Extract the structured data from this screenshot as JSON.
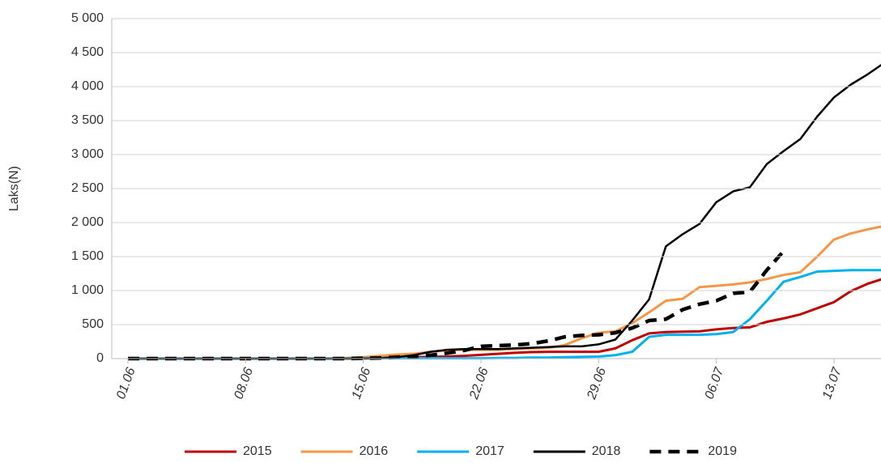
{
  "chart_data": {
    "type": "line",
    "y_label": "Laks(N)",
    "categories": [
      "01.06",
      null,
      null,
      null,
      null,
      null,
      null,
      "08.06",
      null,
      null,
      null,
      null,
      null,
      null,
      "15.06",
      null,
      null,
      null,
      null,
      null,
      null,
      "22.06",
      null,
      null,
      null,
      null,
      null,
      null,
      "29.06",
      null,
      null,
      null,
      null,
      null,
      null,
      "06.07",
      null,
      null,
      null,
      null,
      null,
      null,
      "13.07",
      null,
      null,
      null
    ],
    "ylim": [
      0,
      5000
    ],
    "yticks": [
      0,
      500,
      {
        "value": 1000,
        "label": "1 000"
      },
      {
        "value": 1500,
        "label": "1 500"
      },
      {
        "value": 2000,
        "label": "2 000"
      },
      {
        "value": 2500,
        "label": "2 500"
      },
      {
        "value": 3000,
        "label": "3 000"
      },
      {
        "value": 3500,
        "label": "3 500"
      },
      {
        "value": 4000,
        "label": "4 000"
      },
      {
        "value": 4500,
        "label": "4 500"
      },
      {
        "value": 5000,
        "label": "5 000"
      }
    ],
    "grid": true,
    "legend": "bottom",
    "series": [
      {
        "name": "2015",
        "color": "#c00000",
        "values": [
          0,
          0,
          0,
          0,
          0,
          0,
          0,
          0,
          0,
          0,
          0,
          0,
          0,
          0,
          5,
          10,
          15,
          20,
          25,
          30,
          40,
          55,
          70,
          85,
          95,
          100,
          100,
          100,
          100,
          150,
          270,
          370,
          390,
          395,
          400,
          430,
          450,
          460,
          540,
          590,
          650,
          740,
          830,
          990,
          1100,
          1180
        ]
      },
      {
        "name": "2016",
        "color": "#f79646",
        "values": [
          0,
          0,
          0,
          0,
          0,
          0,
          0,
          0,
          0,
          0,
          0,
          0,
          0,
          10,
          20,
          40,
          60,
          70,
          100,
          120,
          130,
          130,
          130,
          140,
          150,
          160,
          200,
          300,
          380,
          400,
          520,
          680,
          850,
          880,
          1050,
          1070,
          1090,
          1120,
          1170,
          1230,
          1270,
          1500,
          1750,
          1840,
          1900,
          1950
        ]
      },
      {
        "name": "2017",
        "color": "#00b0f0",
        "values": [
          0,
          0,
          0,
          0,
          0,
          0,
          0,
          0,
          0,
          0,
          0,
          0,
          0,
          0,
          5,
          5,
          5,
          5,
          5,
          5,
          5,
          5,
          10,
          10,
          15,
          15,
          20,
          25,
          30,
          50,
          100,
          320,
          350,
          350,
          350,
          360,
          390,
          580,
          850,
          1130,
          1200,
          1280,
          1290,
          1300,
          1300,
          1300
        ]
      },
      {
        "name": "2018",
        "color": "#000000",
        "values": [
          0,
          0,
          0,
          0,
          0,
          0,
          0,
          0,
          0,
          0,
          0,
          0,
          0,
          0,
          0,
          5,
          20,
          50,
          100,
          130,
          140,
          140,
          140,
          150,
          160,
          170,
          180,
          180,
          210,
          280,
          560,
          870,
          1650,
          1830,
          1980,
          2300,
          2460,
          2520,
          2860,
          3050,
          3230,
          3560,
          3840,
          4030,
          4180,
          4350
        ]
      },
      {
        "name": "2019",
        "color": "#000000",
        "style": "dashed",
        "values": [
          0,
          0,
          0,
          0,
          0,
          0,
          0,
          0,
          0,
          0,
          0,
          0,
          0,
          0,
          5,
          10,
          20,
          30,
          50,
          80,
          120,
          180,
          190,
          200,
          220,
          260,
          320,
          340,
          350,
          380,
          450,
          560,
          580,
          720,
          800,
          850,
          960,
          980,
          1300,
          1580,
          null,
          null,
          null,
          null,
          null,
          null
        ]
      }
    ]
  }
}
